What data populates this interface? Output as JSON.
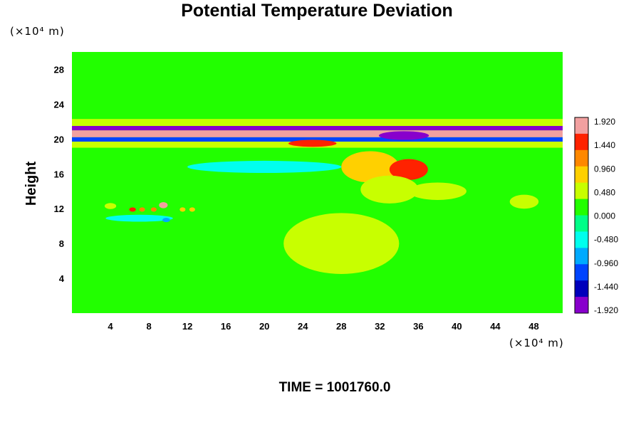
{
  "chart_data": {
    "type": "heatmap",
    "title": "Potential Temperature Deviation",
    "ylabel": "Height",
    "x_unit_label": "(×10⁴ m)",
    "y_unit_label": "(×10⁴ m)",
    "x_ticks": [
      4,
      8,
      12,
      16,
      20,
      24,
      28,
      32,
      36,
      40,
      44,
      48
    ],
    "y_ticks": [
      4,
      8,
      12,
      16,
      20,
      24,
      28
    ],
    "xlim": [
      0,
      51
    ],
    "ylim": [
      0,
      30
    ],
    "colorbar": {
      "ticks": [
        "1.920",
        "1.440",
        "0.960",
        "0.480",
        "0.000",
        "-0.480",
        "-0.960",
        "-1.440",
        "-1.920"
      ],
      "range": [
        -1.92,
        1.92
      ],
      "colors": [
        "#f2a0a0",
        "#ff2200",
        "#ff8800",
        "#ffd000",
        "#c8ff00",
        "#22ff00",
        "#00ff88",
        "#00ffee",
        "#00aaff",
        "#0044ff",
        "#0000bb",
        "#8800cc"
      ]
    },
    "background_value": 0.1,
    "features": [
      {
        "kind": "band",
        "x": [
          0,
          51
        ],
        "y": [
          20.2,
          21.0
        ],
        "value": 1.92,
        "note": "warm layer"
      },
      {
        "kind": "band",
        "x": [
          0,
          51
        ],
        "y": [
          21.0,
          21.5
        ],
        "value": -1.7
      },
      {
        "kind": "band",
        "x": [
          0,
          51
        ],
        "y": [
          19.7,
          20.2
        ],
        "value": -1.2
      },
      {
        "kind": "band",
        "x": [
          0,
          51
        ],
        "y": [
          21.5,
          22.3
        ],
        "value": 0.55
      },
      {
        "kind": "band",
        "x": [
          0,
          51
        ],
        "y": [
          19.0,
          19.7
        ],
        "value": 0.4
      },
      {
        "kind": "blob",
        "x": 34.5,
        "y": 20.4,
        "rx": 2.6,
        "ry": 0.5,
        "value": -1.92
      },
      {
        "kind": "blob",
        "x": 25.0,
        "y": 19.5,
        "rx": 2.5,
        "ry": 0.4,
        "value": 1.5
      },
      {
        "kind": "blob",
        "x": 31.0,
        "y": 16.8,
        "rx": 3.0,
        "ry": 1.8,
        "value": 0.9
      },
      {
        "kind": "blob",
        "x": 35.0,
        "y": 16.5,
        "rx": 2.0,
        "ry": 1.2,
        "value": 1.3
      },
      {
        "kind": "blob",
        "x": 33.0,
        "y": 14.2,
        "rx": 3.0,
        "ry": 1.6,
        "value": 0.35
      },
      {
        "kind": "blob",
        "x": 9.5,
        "y": 12.4,
        "rx": 0.45,
        "ry": 0.35,
        "value": 1.6
      },
      {
        "kind": "blob",
        "x": 6.3,
        "y": 11.9,
        "rx": 0.35,
        "ry": 0.25,
        "value": 1.4
      },
      {
        "kind": "blob",
        "x": 7.3,
        "y": 11.9,
        "rx": 0.3,
        "ry": 0.25,
        "value": 1.2
      },
      {
        "kind": "blob",
        "x": 8.5,
        "y": 11.9,
        "rx": 0.3,
        "ry": 0.25,
        "value": 1.0
      },
      {
        "kind": "blob",
        "x": 4.0,
        "y": 12.3,
        "rx": 0.6,
        "ry": 0.35,
        "value": 0.6
      },
      {
        "kind": "blob",
        "x": 11.5,
        "y": 11.9,
        "rx": 0.3,
        "ry": 0.25,
        "value": 0.8
      },
      {
        "kind": "blob",
        "x": 12.5,
        "y": 11.9,
        "rx": 0.3,
        "ry": 0.25,
        "value": 0.7
      },
      {
        "kind": "blob",
        "x": 7.0,
        "y": 10.9,
        "rx": 3.5,
        "ry": 0.4,
        "value": -0.45
      },
      {
        "kind": "blob",
        "x": 9.8,
        "y": 10.7,
        "rx": 0.4,
        "ry": 0.25,
        "value": -0.8
      },
      {
        "kind": "blob",
        "x": 20.0,
        "y": 16.8,
        "rx": 8.0,
        "ry": 0.7,
        "value": -0.35
      },
      {
        "kind": "blob",
        "x": 28.0,
        "y": 8.0,
        "rx": 6.0,
        "ry": 3.5,
        "value": 0.35
      },
      {
        "kind": "blob",
        "x": 47.0,
        "y": 12.8,
        "rx": 1.5,
        "ry": 0.8,
        "value": 0.5
      },
      {
        "kind": "blob",
        "x": 38.0,
        "y": 14.0,
        "rx": 3.0,
        "ry": 1.0,
        "value": 0.45
      }
    ]
  },
  "footer": {
    "time_label": "TIME = 1001760.0"
  }
}
